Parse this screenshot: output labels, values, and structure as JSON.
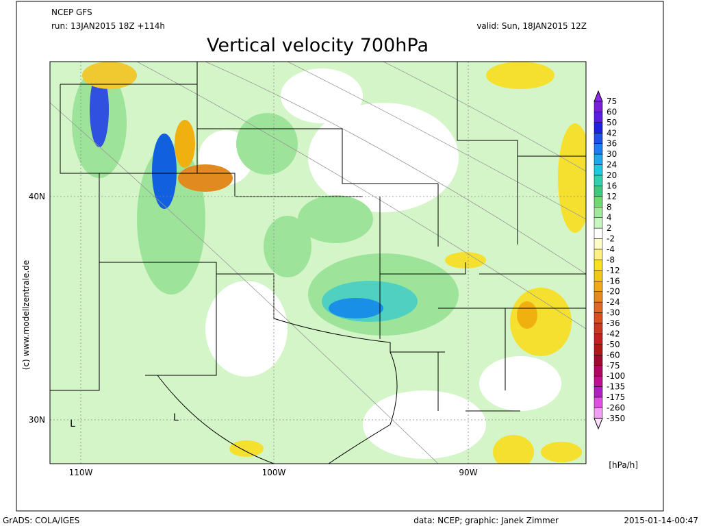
{
  "header": {
    "model": "NCEP GFS",
    "run": "run: 13JAN2015 18Z +114h",
    "valid": "valid: Sun, 18JAN2015 12Z",
    "title": "Vertical velocity 700hPa"
  },
  "map": {
    "lat_labels": [
      "40N",
      "30N"
    ],
    "lon_labels": [
      "110W",
      "100W",
      "90W"
    ],
    "lows": [
      "L",
      "L"
    ],
    "credit": "(c) www.modellzentrale.de"
  },
  "colorbar": {
    "labels": [
      "75",
      "60",
      "50",
      "42",
      "36",
      "30",
      "24",
      "20",
      "16",
      "12",
      "8",
      "4",
      "2",
      "-2",
      "-4",
      "-8",
      "-12",
      "-16",
      "-20",
      "-24",
      "-30",
      "-36",
      "-42",
      "-50",
      "-60",
      "-75",
      "-100",
      "-135",
      "-175",
      "-260",
      "-350"
    ],
    "unit": "[hPa/h]"
  },
  "footer": {
    "left": "GrADS: COLA/IGES",
    "center": "data: NCEP; graphic: Janek Zimmer",
    "right": "2015-01-14-00:47"
  }
}
